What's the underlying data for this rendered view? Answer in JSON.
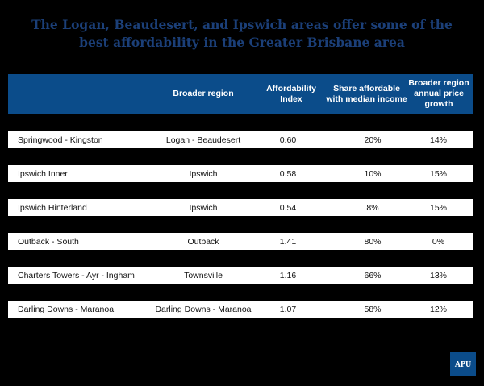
{
  "title": {
    "line1": "The Logan, Beaudesert, and Ipswich areas offer some of the",
    "line2": "best affordability in the Greater Brisbane area"
  },
  "table": {
    "headers": [
      "",
      "Broader region",
      "Affordability Index",
      "Share affordable with median income",
      "Broader region annual price growth"
    ],
    "rows": [
      [
        "Springwood - Kingston",
        "Logan - Beaudesert",
        "0.60",
        "20%",
        "14%"
      ],
      [
        "Ipswich Inner",
        "Ipswich",
        "0.58",
        "10%",
        "15%"
      ],
      [
        "Ipswich Hinterland",
        "Ipswich",
        "0.54",
        "8%",
        "15%"
      ],
      [
        "Outback - South",
        "Outback",
        "1.41",
        "80%",
        "0%"
      ],
      [
        "Charters Towers - Ayr - Ingham",
        "Townsville",
        "1.16",
        "66%",
        "13%"
      ],
      [
        "Darling Downs - Maranoa",
        "Darling Downs - Maranoa",
        "1.07",
        "58%",
        "12%"
      ]
    ]
  },
  "logo": {
    "text": "APU"
  },
  "colors": {
    "header_bg": "#0b4c8a",
    "title": "#1b3f78",
    "background": "#000000"
  }
}
